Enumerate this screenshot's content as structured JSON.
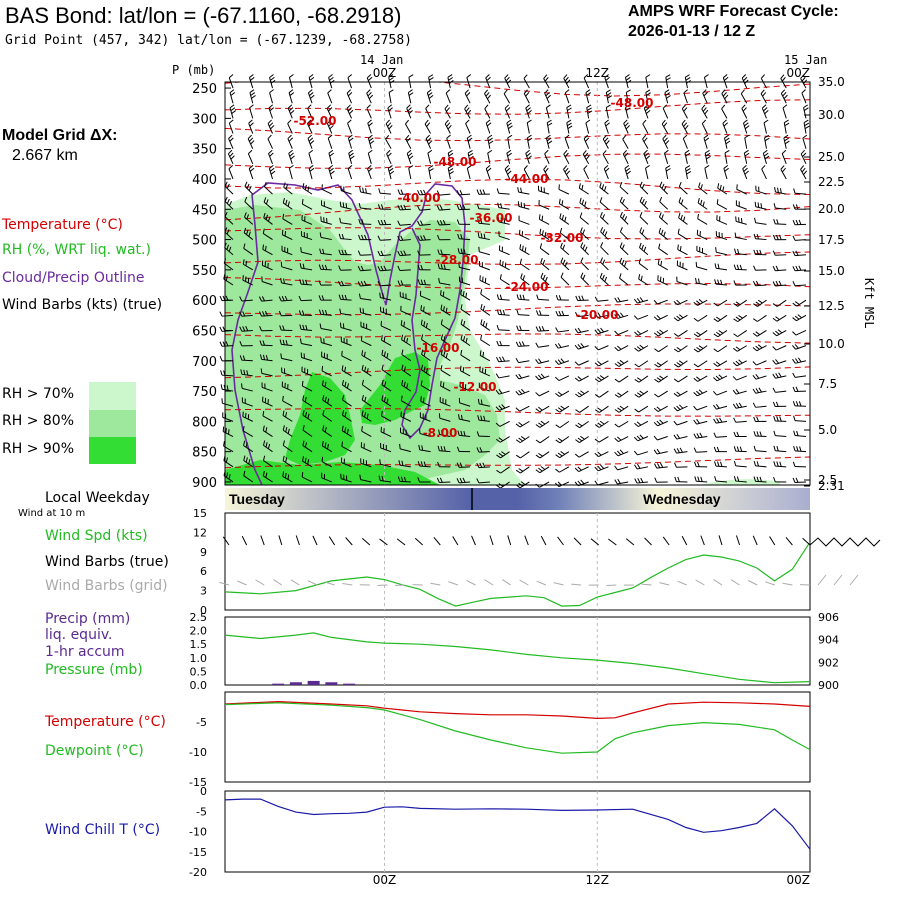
{
  "header": {
    "title": "BAS Bond:  lat/lon = (-67.1160, -68.2918)",
    "subtitle": "Grid Point (457, 342) lat/lon = (-67.1239, -68.2758)",
    "cycle_line1": "AMPS WRF Forecast Cycle:",
    "cycle_line2": "2026-01-13 / 12  Z"
  },
  "legend": {
    "model_grid_label": "Model Grid ΔX:",
    "model_grid_value": "2.667 km",
    "temperature": "Temperature (°C)",
    "rh": "RH (%, WRT liq. wat.)",
    "cloud": "Cloud/Precip Outline",
    "wind_barbs": "Wind Barbs (kts) (true)",
    "rh70": "RH > 70%",
    "rh80": "RH > 80%",
    "rh90": "RH > 90%",
    "local_weekday": "Local Weekday",
    "wind_at_10m": "Wind at 10 m",
    "wind_spd": "Wind Spd (kts)",
    "wind_barbs_true": "Wind Barbs (true)",
    "wind_barbs_grid": "Wind Barbs (grid)",
    "precip1": "Precip (mm)",
    "precip2": "liq. equiv.",
    "precip3": "1-hr accum",
    "pressure": "Pressure (mb)",
    "temperature2": "Temperature (°C)",
    "dewpoint": "Dewpoint (°C)",
    "wind_chill": "Wind Chill T (°C)"
  },
  "colors": {
    "temperature": "#d40000",
    "rh_text": "#22bb22",
    "cloud": "#6a2aa0",
    "rh70": "#ccf7cc",
    "rh80": "#9de89d",
    "rh90": "#33dd33",
    "wind_spd": "#22bb22",
    "wind_grid": "#aaaaaa",
    "precip": "#5a2a90",
    "pressure": "#22bb22",
    "dewpoint": "#22bb22",
    "wind_chill": "#1a1aa8",
    "weekday_dark": "#5562a8",
    "weekday_light": "#f7f5d8"
  },
  "chart_data": [
    {
      "id": "cross_section",
      "type": "heatmap",
      "title": "Vertical time section",
      "ylabel_left": "P (mb)",
      "ylabel_right": "Kft MSL",
      "top_date": "14 Jan",
      "top_date_right": "15 Jan",
      "x_ticks": [
        "00Z",
        "12Z",
        "00Z"
      ],
      "pressure_ticks": [
        "250",
        "300",
        "350",
        "400",
        "450",
        "500",
        "550",
        "600",
        "650",
        "700",
        "750",
        "800",
        "850",
        "900"
      ],
      "kft_ticks": [
        "35.0",
        "30.0",
        "25.0",
        "22.5",
        "20.0",
        "17.5",
        "15.0",
        "12.5",
        "10.0",
        "7.5",
        "5.0",
        "2.5",
        "2.31"
      ],
      "isotherm_labels": [
        "-48.00",
        "-52.00",
        "-48.00",
        "-44.00",
        "-40.00",
        "-36.00",
        "-32.00",
        "-28.00",
        "-24.00",
        "-20.00",
        "-16.00",
        "-12.00",
        "-8.00"
      ],
      "xlim_hours": [
        -9,
        24
      ],
      "ylim_mb": [
        240,
        905
      ]
    },
    {
      "id": "weekday_bar",
      "type": "table",
      "labels": [
        "Tuesday",
        "Wednesday"
      ]
    },
    {
      "id": "wind",
      "type": "line",
      "y_ticks": [
        "15",
        "12",
        "9",
        "6",
        "3",
        "0"
      ],
      "ylim": [
        0,
        15
      ],
      "series": [
        {
          "name": "Wind Spd (kts)",
          "x": [
            -9,
            -7,
            -5,
            -3,
            -1,
            0,
            1,
            2,
            3,
            4,
            5,
            6,
            7,
            8,
            9,
            10,
            11,
            12,
            13,
            14,
            15,
            16,
            17,
            18,
            19,
            20,
            21,
            22,
            23,
            24
          ],
          "values": [
            2.8,
            2.5,
            3.0,
            4.5,
            5.1,
            4.7,
            3.9,
            3.2,
            1.8,
            0.6,
            1.2,
            1.8,
            2.0,
            2.2,
            1.9,
            0.6,
            0.7,
            2.0,
            2.7,
            3.4,
            5.0,
            6.5,
            7.8,
            8.5,
            8.2,
            7.6,
            6.5,
            4.5,
            6.3,
            10.5
          ]
        }
      ]
    },
    {
      "id": "precip_pressure",
      "type": "line",
      "y_ticks_left": [
        "2.5",
        "2.0",
        "1.5",
        "1.0",
        "0.5",
        "0.0"
      ],
      "y_ticks_right": [
        "906",
        "904",
        "902",
        "900"
      ],
      "ylabel_right": "(mb)",
      "ylim_left": [
        0,
        2.5
      ],
      "ylim_right": [
        900,
        906
      ],
      "series": [
        {
          "name": "Pressure (mb)",
          "x": [
            -9,
            -7,
            -5,
            -4,
            -3,
            -1,
            0,
            2,
            4,
            6,
            8,
            10,
            12,
            14,
            16,
            18,
            20,
            22,
            24
          ],
          "values": [
            904.4,
            904.1,
            904.4,
            904.6,
            904.2,
            903.8,
            903.7,
            903.6,
            903.4,
            903.1,
            902.7,
            902.4,
            902.2,
            901.9,
            901.5,
            901.0,
            900.5,
            900.2,
            900.3
          ]
        },
        {
          "name": "Precip (mm)",
          "x": [
            -6,
            -5,
            -4,
            -3,
            -2
          ],
          "values": [
            0.05,
            0.1,
            0.15,
            0.1,
            0.05
          ]
        }
      ]
    },
    {
      "id": "temp_dew",
      "type": "line",
      "y_ticks": [
        "-5",
        "-10",
        "-15"
      ],
      "ylim": [
        -15,
        0
      ],
      "series": [
        {
          "name": "Temperature (°C)",
          "x": [
            -9,
            -6,
            -3,
            -1,
            0,
            1,
            2,
            4,
            6,
            8,
            10,
            12,
            13,
            14,
            16,
            18,
            20,
            22,
            24
          ],
          "values": [
            -2.0,
            -1.6,
            -2.0,
            -2.3,
            -2.7,
            -3.0,
            -3.3,
            -3.6,
            -3.8,
            -3.8,
            -4.0,
            -4.4,
            -4.3,
            -3.5,
            -2.0,
            -1.7,
            -1.8,
            -2.0,
            -2.4
          ]
        },
        {
          "name": "Dewpoint (°C)",
          "x": [
            -9,
            -6,
            -3,
            -1,
            0,
            1,
            2,
            4,
            6,
            8,
            10,
            12,
            13,
            14,
            16,
            18,
            20,
            22,
            23,
            24
          ],
          "values": [
            -2.1,
            -1.8,
            -2.2,
            -2.6,
            -3.0,
            -3.8,
            -4.6,
            -6.5,
            -8.0,
            -9.3,
            -10.2,
            -10.0,
            -7.8,
            -6.8,
            -5.6,
            -5.1,
            -5.4,
            -6.3,
            -8.0,
            -9.6
          ]
        }
      ]
    },
    {
      "id": "wind_chill",
      "type": "line",
      "y_ticks": [
        "0",
        "-5",
        "-10",
        "-15",
        "-20"
      ],
      "ylim": [
        -20,
        0
      ],
      "x_ticks_bottom": [
        "00Z",
        "12Z",
        "00Z"
      ],
      "date_ticks_bottom": [
        "14 Jan",
        "15 Jan"
      ],
      "series": [
        {
          "name": "Wind Chill T (°C)",
          "x": [
            -9,
            -8,
            -7,
            -6,
            -5,
            -4,
            -3,
            -2,
            -1,
            0,
            1,
            2,
            4,
            6,
            8,
            10,
            12,
            14,
            16,
            17,
            18,
            19,
            20,
            21,
            22,
            23,
            24
          ],
          "values": [
            -2.2,
            -2.0,
            -2.0,
            -3.8,
            -5.2,
            -5.8,
            -5.6,
            -5.5,
            -5.2,
            -4.0,
            -3.9,
            -4.3,
            -4.5,
            -4.4,
            -4.5,
            -4.8,
            -4.7,
            -4.5,
            -7.0,
            -9.0,
            -10.2,
            -9.8,
            -9.0,
            -8.0,
            -4.4,
            -8.6,
            -14.4
          ]
        }
      ]
    }
  ]
}
